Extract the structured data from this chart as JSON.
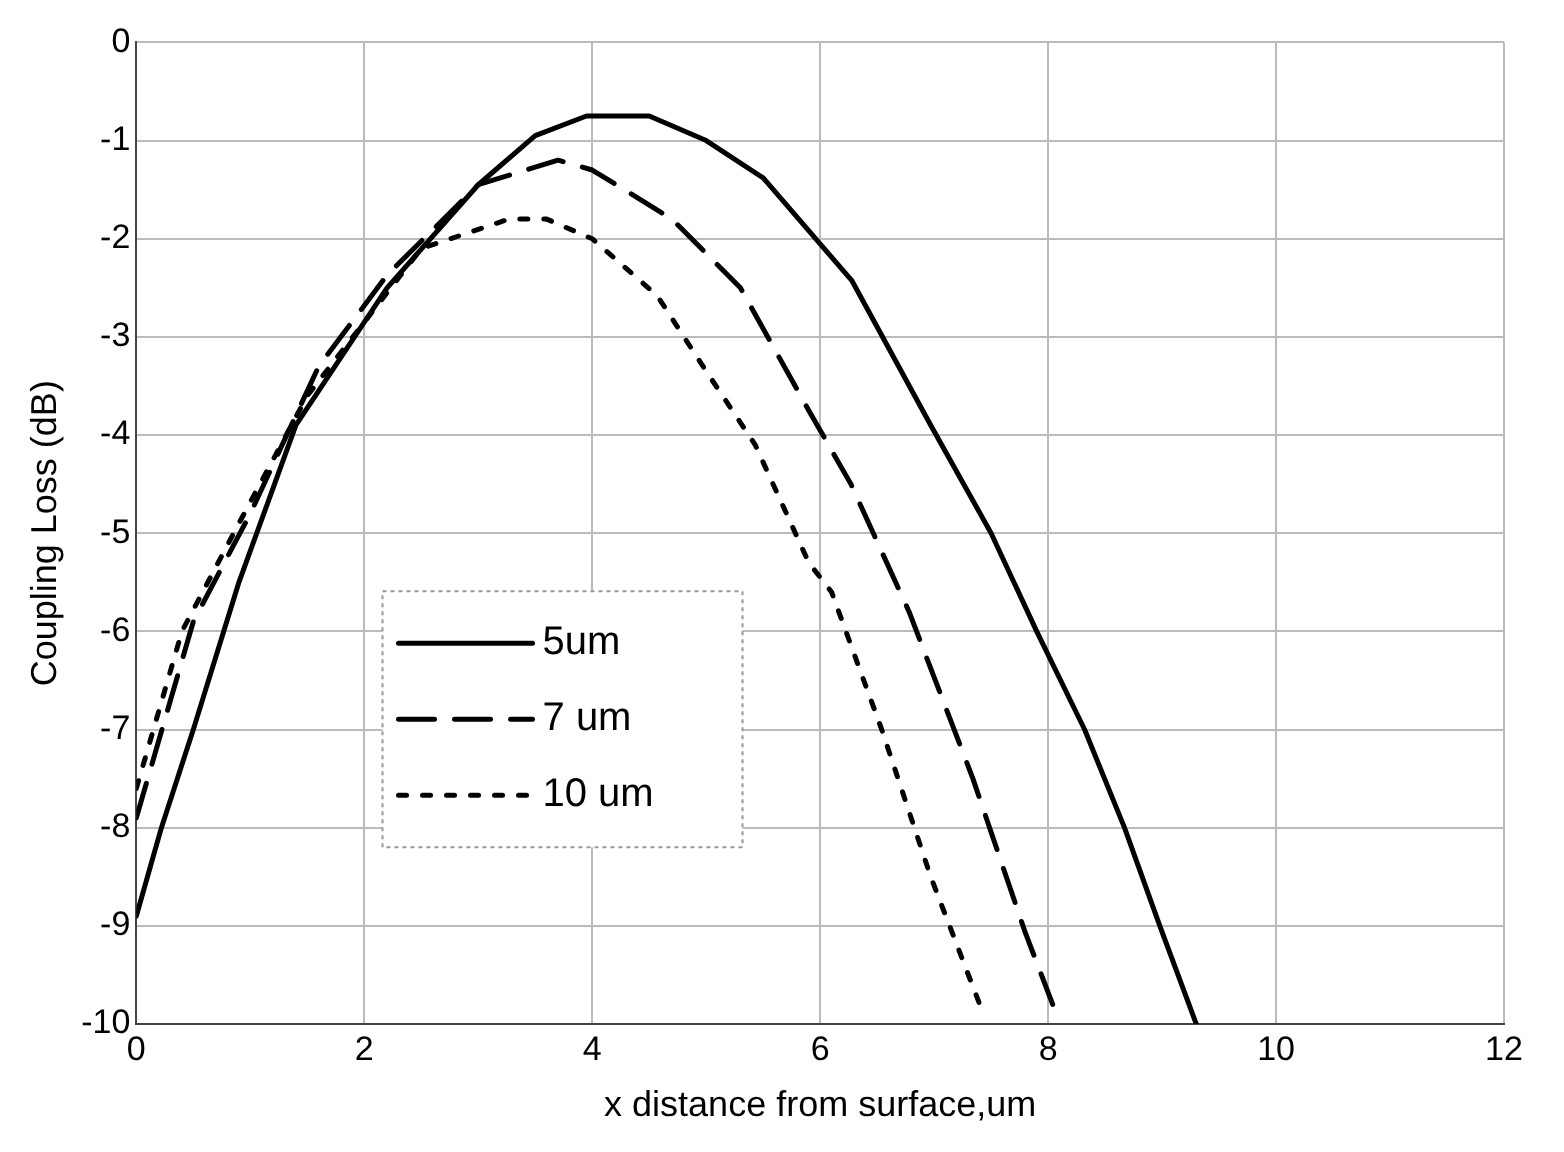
{
  "chart_data": {
    "type": "line",
    "xlabel": "x distance from surface,um",
    "ylabel": "Coupling Loss (dB)",
    "xlim": [
      0,
      12
    ],
    "xticks": [
      0,
      2,
      4,
      6,
      8,
      10,
      12
    ],
    "ylim": [
      -10,
      0
    ],
    "yticks": [
      -10,
      -9,
      -8,
      -7,
      -6,
      -5,
      -4,
      -3,
      -2,
      -1,
      0
    ],
    "grid": true,
    "legend": "bottom left",
    "marker": "none",
    "series": [
      {
        "name": "5um",
        "color": "#000000",
        "line_style": "solid",
        "x": [
          0,
          0.22,
          0.5,
          0.9,
          1.4,
          2.2,
          3,
          3.5,
          3.95,
          4.5,
          5,
          5.5,
          6.28,
          6.97,
          7.5,
          7.9,
          8.32,
          8.67,
          8.98,
          9.3
        ],
        "values": [
          -8.9,
          -8,
          -7,
          -5.5,
          -3.9,
          -2.5,
          -1.45,
          -0.95,
          -0.75,
          -0.75,
          -1,
          -1.38,
          -2.43,
          -3.9,
          -5,
          -6,
          -7,
          -8,
          -9,
          -10
        ]
      },
      {
        "name": "7 um",
        "color": "#000000",
        "line_style": "dashed",
        "x": [
          0,
          0.5,
          1,
          1.6,
          2.2,
          3,
          3.7,
          4,
          4.7,
          5.3,
          5.9,
          6.27,
          6.78,
          7.34,
          7.8,
          8.04
        ],
        "values": [
          -7.9,
          -5.9,
          -4.8,
          -3.3,
          -2.37,
          -1.45,
          -1.2,
          -1.3,
          -1.8,
          -2.5,
          -3.75,
          -4.5,
          -5.8,
          -7.5,
          -9.07,
          -9.8
        ]
      },
      {
        "name": "10 um",
        "color": "#000000",
        "line_style": "dotted",
        "x": [
          0,
          0.4,
          0.9,
          1.5,
          2.5,
          3.27,
          3.6,
          4,
          4.57,
          5,
          5.43,
          5.9,
          6.1,
          6.54,
          6.97,
          7.4
        ],
        "values": [
          -7.6,
          -6,
          -4.9,
          -3.6,
          -2.1,
          -1.8,
          -1.8,
          -2,
          -2.58,
          -3.35,
          -4.1,
          -5.3,
          -5.6,
          -7,
          -8.5,
          -9.8
        ]
      }
    ]
  }
}
